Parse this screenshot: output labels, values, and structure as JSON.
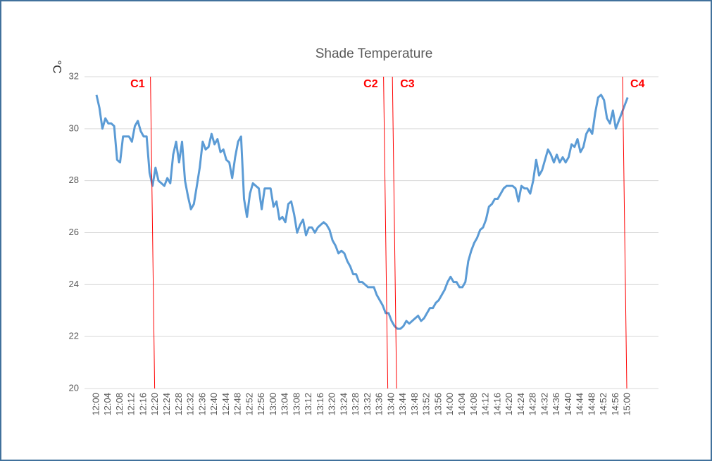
{
  "chart_data": {
    "type": "line",
    "title": "Shade Temperature",
    "y_label": "°C",
    "categories": [
      "12:00",
      null,
      null,
      null,
      "12:04",
      null,
      null,
      null,
      "12:08",
      null,
      null,
      null,
      "12:12",
      null,
      null,
      null,
      "12:16",
      null,
      null,
      null,
      "12:20",
      null,
      null,
      null,
      "12:24",
      null,
      null,
      null,
      "12:28",
      null,
      null,
      null,
      "12:32",
      null,
      null,
      null,
      "12:36",
      null,
      null,
      null,
      "12:40",
      null,
      null,
      null,
      "12:44",
      null,
      null,
      null,
      "12:48",
      null,
      null,
      null,
      "12:52",
      null,
      null,
      null,
      "12:56",
      null,
      null,
      null,
      "13:00",
      null,
      null,
      null,
      "13:04",
      null,
      null,
      null,
      "13:08",
      null,
      null,
      null,
      "13:12",
      null,
      null,
      null,
      "13:16",
      null,
      null,
      null,
      "13:20",
      null,
      null,
      null,
      "13:24",
      null,
      null,
      null,
      "13:28",
      null,
      null,
      null,
      "13:32",
      null,
      null,
      null,
      "13:36",
      null,
      null,
      null,
      "13:40",
      null,
      null,
      null,
      "13:44",
      null,
      null,
      null,
      "13:48",
      null,
      null,
      null,
      "13:52",
      null,
      null,
      null,
      "13:56",
      null,
      null,
      null,
      "14:00",
      null,
      null,
      null,
      "14:04",
      null,
      null,
      null,
      "14:08",
      null,
      null,
      null,
      "14:12",
      null,
      null,
      null,
      "14:16",
      null,
      null,
      null,
      "14:20",
      null,
      null,
      null,
      "14:24",
      null,
      null,
      null,
      "14:28",
      null,
      null,
      null,
      "14:32",
      null,
      null,
      null,
      "14:36",
      null,
      null,
      null,
      "14:40",
      null,
      null,
      null,
      "14:44",
      null,
      null,
      null,
      "14:48",
      null,
      null,
      null,
      "14:52",
      null,
      null,
      null,
      "14:56",
      null,
      null,
      null,
      "15:00"
    ],
    "series": [
      {
        "name": "Shade Temperature",
        "color": "#5b9bd5",
        "values": [
          31.3,
          30.8,
          30.0,
          30.4,
          30.2,
          30.2,
          30.1,
          28.8,
          28.7,
          29.7,
          29.7,
          29.7,
          29.5,
          30.1,
          30.3,
          29.9,
          29.7,
          29.7,
          28.3,
          27.8,
          28.5,
          28.0,
          27.9,
          27.8,
          28.1,
          27.9,
          29.0,
          29.5,
          28.7,
          29.5,
          28.0,
          27.4,
          26.9,
          27.1,
          27.8,
          28.5,
          29.5,
          29.2,
          29.3,
          29.8,
          29.4,
          29.6,
          29.1,
          29.2,
          28.8,
          28.7,
          28.1,
          28.9,
          29.5,
          29.7,
          27.3,
          26.6,
          27.5,
          27.9,
          27.8,
          27.7,
          26.9,
          27.7,
          27.7,
          27.7,
          27.0,
          27.2,
          26.5,
          26.6,
          26.4,
          27.1,
          27.2,
          26.7,
          26.0,
          26.3,
          26.5,
          25.9,
          26.2,
          26.2,
          26.0,
          26.2,
          26.3,
          26.4,
          26.3,
          26.1,
          25.7,
          25.5,
          25.2,
          25.3,
          25.2,
          24.9,
          24.7,
          24.4,
          24.4,
          24.1,
          24.1,
          24.0,
          23.9,
          23.9,
          23.9,
          23.6,
          23.4,
          23.2,
          22.9,
          22.9,
          22.6,
          22.4,
          22.3,
          22.3,
          22.4,
          22.6,
          22.5,
          22.6,
          22.7,
          22.8,
          22.6,
          22.7,
          22.9,
          23.1,
          23.1,
          23.3,
          23.4,
          23.6,
          23.8,
          24.1,
          24.3,
          24.1,
          24.1,
          23.9,
          23.9,
          24.1,
          24.9,
          25.3,
          25.6,
          25.8,
          26.1,
          26.2,
          26.5,
          27.0,
          27.1,
          27.3,
          27.3,
          27.5,
          27.7,
          27.8,
          27.8,
          27.8,
          27.7,
          27.2,
          27.8,
          27.7,
          27.7,
          27.5,
          28.0,
          28.8,
          28.2,
          28.4,
          28.8,
          29.2,
          29.0,
          28.7,
          29.0,
          28.7,
          28.9,
          28.7,
          28.9,
          29.4,
          29.3,
          29.6,
          29.1,
          29.3,
          29.8,
          30.0,
          29.8,
          30.6,
          31.2,
          31.3,
          31.1,
          30.4,
          30.2,
          30.7,
          30.0,
          30.3,
          30.6,
          30.9,
          31.2
        ]
      }
    ],
    "ylim": [
      20,
      32
    ],
    "yticks": [
      20,
      22,
      24,
      26,
      28,
      30,
      32
    ],
    "grid": true,
    "annotations": [
      {
        "label": "C1",
        "time": "12:19",
        "label_side": "left",
        "color": "#ff0000"
      },
      {
        "label": "C2",
        "time": "13:38",
        "label_side": "left",
        "color": "#ff0000"
      },
      {
        "label": "C3",
        "time": "13:41",
        "label_side": "right",
        "color": "#ff0000"
      },
      {
        "label": "C4",
        "time": "14:59",
        "label_side": "right",
        "color": "#ff0000"
      }
    ]
  }
}
